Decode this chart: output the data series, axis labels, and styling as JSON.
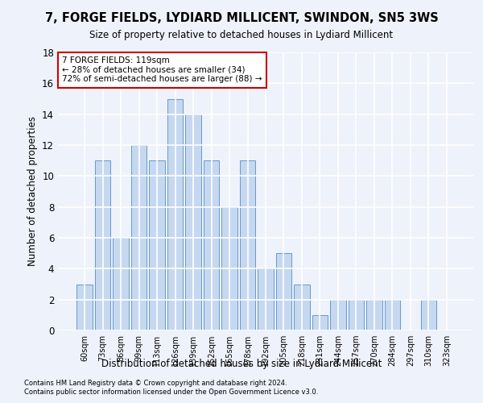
{
  "title": "7, FORGE FIELDS, LYDIARD MILLICENT, SWINDON, SN5 3WS",
  "subtitle": "Size of property relative to detached houses in Lydiard Millicent",
  "xlabel": "Distribution of detached houses by size in Lydiard Millicent",
  "ylabel": "Number of detached properties",
  "categories": [
    "60sqm",
    "73sqm",
    "86sqm",
    "99sqm",
    "113sqm",
    "126sqm",
    "139sqm",
    "152sqm",
    "165sqm",
    "178sqm",
    "192sqm",
    "205sqm",
    "218sqm",
    "231sqm",
    "244sqm",
    "257sqm",
    "270sqm",
    "284sqm",
    "297sqm",
    "310sqm",
    "323sqm"
  ],
  "values": [
    3,
    11,
    6,
    12,
    11,
    15,
    14,
    11,
    8,
    11,
    4,
    5,
    3,
    1,
    2,
    2,
    2,
    2,
    0,
    2,
    0
  ],
  "bar_color": "#c5d8f0",
  "bar_edge_color": "#6699cc",
  "annotation_line1": "7 FORGE FIELDS: 119sqm",
  "annotation_line2": "← 28% of detached houses are smaller (34)",
  "annotation_line3": "72% of semi-detached houses are larger (88) →",
  "annotation_box_color": "#ffffff",
  "annotation_box_edge_color": "#cc0000",
  "ylim": [
    0,
    18
  ],
  "yticks": [
    0,
    2,
    4,
    6,
    8,
    10,
    12,
    14,
    16,
    18
  ],
  "footnote1": "Contains HM Land Registry data © Crown copyright and database right 2024.",
  "footnote2": "Contains public sector information licensed under the Open Government Licence v3.0.",
  "background_color": "#eef2fa",
  "grid_color": "#ffffff"
}
